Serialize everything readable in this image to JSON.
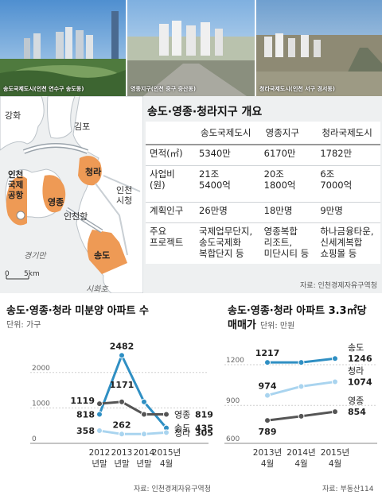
{
  "photos": [
    {
      "caption": "송도국제도시(인천 연수구 송도동)"
    },
    {
      "caption": "영종지구(인천 중구 중산동)"
    },
    {
      "caption": "청라국제도시(인천 서구 경서동)"
    }
  ],
  "map": {
    "labels": {
      "ganghwa": "강화",
      "gimpo": "김포",
      "airport": "인천\n국제\n공항",
      "yeongjong": "영종",
      "cheongna": "청라",
      "incheon_port": "인천항",
      "city_hall": "인천\n시청",
      "gyeonggi_bay": "경기만",
      "songdo": "송도",
      "siheung": "시화호"
    },
    "scale_zero": "0",
    "scale_unit": "5km"
  },
  "overview": {
    "title": "송도·영종·청라지구 개요",
    "columns": [
      "",
      "송도국제도시",
      "영종지구",
      "청라국제도시"
    ],
    "rows": [
      {
        "label": "면적(㎡)",
        "values": [
          "5340만",
          "6170만",
          "1782만"
        ]
      },
      {
        "label": "사업비\n(원)",
        "values": [
          "21조\n5400억",
          "20조\n1800억",
          "6조\n7000억"
        ]
      },
      {
        "label": "계획인구",
        "values": [
          "26만명",
          "18만명",
          "9만명"
        ]
      },
      {
        "label": "주요\n프로젝트",
        "values": [
          "국제업무단지,\n송도국제화\n복합단지 등",
          "영종복합\n리조트,\n미단시티 등",
          "하나금융타운,\n신세계복합\n쇼핑몰 등"
        ]
      }
    ],
    "source": "자료: 인천경제자유구역청"
  },
  "chart_data": [
    {
      "type": "line",
      "title": "송도·영종·청라 미분양 아파트 수",
      "unit": "단위: 가구",
      "categories": [
        "2012\n년말",
        "2013\n년말",
        "2014\n년말",
        "2015년\n4월"
      ],
      "ylim": [
        0,
        2600
      ],
      "yticks": [
        0,
        1000,
        2000
      ],
      "series": [
        {
          "name": "송도",
          "values": [
            818,
            2482,
            1171,
            435
          ],
          "color": "#2f8fc3"
        },
        {
          "name": "영종",
          "values": [
            1119,
            1171,
            819,
            819
          ],
          "color": "#555555"
        },
        {
          "name": "청라",
          "values": [
            358,
            262,
            262,
            305
          ],
          "color": "#a9d4ef"
        }
      ],
      "point_labels": [
        {
          "series": "송도",
          "labels": [
            "818",
            "2482",
            "",
            "435"
          ]
        },
        {
          "series": "영종",
          "labels": [
            "1119",
            "1171",
            "",
            "819"
          ]
        },
        {
          "series": "청라",
          "labels": [
            "358",
            "262",
            "",
            "305"
          ]
        }
      ],
      "source": "자료: 인천경제자유구역청"
    },
    {
      "type": "line",
      "title": "송도·영종·청라 아파트 3.3㎡당",
      "title2": "매매가",
      "unit": "단위: 만원",
      "categories": [
        "2013년\n4월",
        "2014년\n4월",
        "2015년\n4월"
      ],
      "ylim": [
        620,
        1300
      ],
      "yticks": [
        600,
        900,
        1200
      ],
      "series": [
        {
          "name": "송도",
          "values": [
            1217,
            1217,
            1246
          ],
          "color": "#2f8fc3"
        },
        {
          "name": "청라",
          "values": [
            974,
            1040,
            1074
          ],
          "color": "#a9d4ef"
        },
        {
          "name": "영종",
          "values": [
            789,
            820,
            854
          ],
          "color": "#555555"
        }
      ],
      "point_labels": [
        {
          "series": "송도",
          "labels": [
            "1217",
            "",
            "1246"
          ]
        },
        {
          "series": "청라",
          "labels": [
            "974",
            "",
            "1074"
          ]
        },
        {
          "series": "영종",
          "labels": [
            "789",
            "",
            "854"
          ]
        }
      ],
      "source": "자료: 부동산114"
    }
  ]
}
